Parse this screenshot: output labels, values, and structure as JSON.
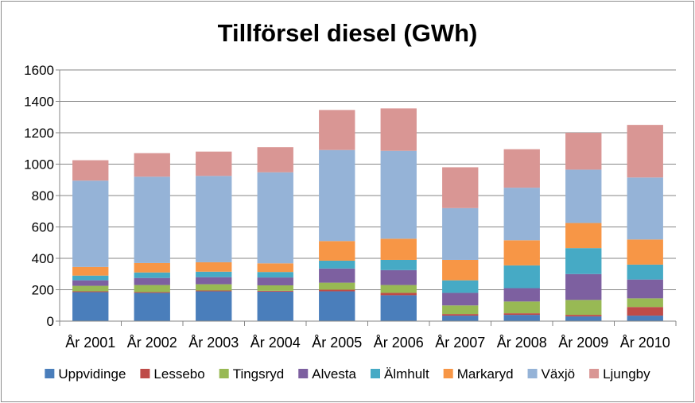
{
  "chart_data": {
    "type": "bar",
    "stacked": true,
    "title": "Tillförsel diesel (GWh)",
    "xlabel": "",
    "ylabel": "",
    "ylim": [
      0,
      1600
    ],
    "yticks": [
      0,
      200,
      400,
      600,
      800,
      1000,
      1200,
      1400,
      1600
    ],
    "grid": true,
    "legend_position": "bottom",
    "categories": [
      "År 2001",
      "År 2002",
      "År 2003",
      "År 2004",
      "År 2005",
      "År 2006",
      "År 2007",
      "År 2008",
      "År 2009",
      "År 2010"
    ],
    "series": [
      {
        "name": "Uppvidinge",
        "color": "#4a7ebb",
        "values": [
          185,
          180,
          190,
          188,
          190,
          165,
          35,
          40,
          30,
          35
        ]
      },
      {
        "name": "Lessebo",
        "color": "#be4b48",
        "values": [
          5,
          5,
          5,
          5,
          10,
          15,
          10,
          10,
          10,
          55
        ]
      },
      {
        "name": "Tingsryd",
        "color": "#98b954",
        "values": [
          35,
          45,
          40,
          35,
          45,
          50,
          55,
          75,
          95,
          55
        ]
      },
      {
        "name": "Alvesta",
        "color": "#7d60a0",
        "values": [
          35,
          45,
          45,
          50,
          90,
          95,
          80,
          85,
          165,
          120
        ]
      },
      {
        "name": "Älmhult",
        "color": "#46aac5",
        "values": [
          30,
          35,
          35,
          35,
          50,
          65,
          80,
          145,
          165,
          95
        ]
      },
      {
        "name": "Markaryd",
        "color": "#f79646",
        "values": [
          55,
          60,
          60,
          55,
          125,
          135,
          130,
          160,
          160,
          160
        ]
      },
      {
        "name": "Växjö",
        "color": "#95b3d7",
        "values": [
          550,
          550,
          550,
          580,
          580,
          560,
          330,
          335,
          340,
          395
        ]
      },
      {
        "name": "Ljungby",
        "color": "#d99694",
        "values": [
          130,
          150,
          155,
          160,
          255,
          270,
          260,
          245,
          235,
          335
        ]
      }
    ]
  }
}
